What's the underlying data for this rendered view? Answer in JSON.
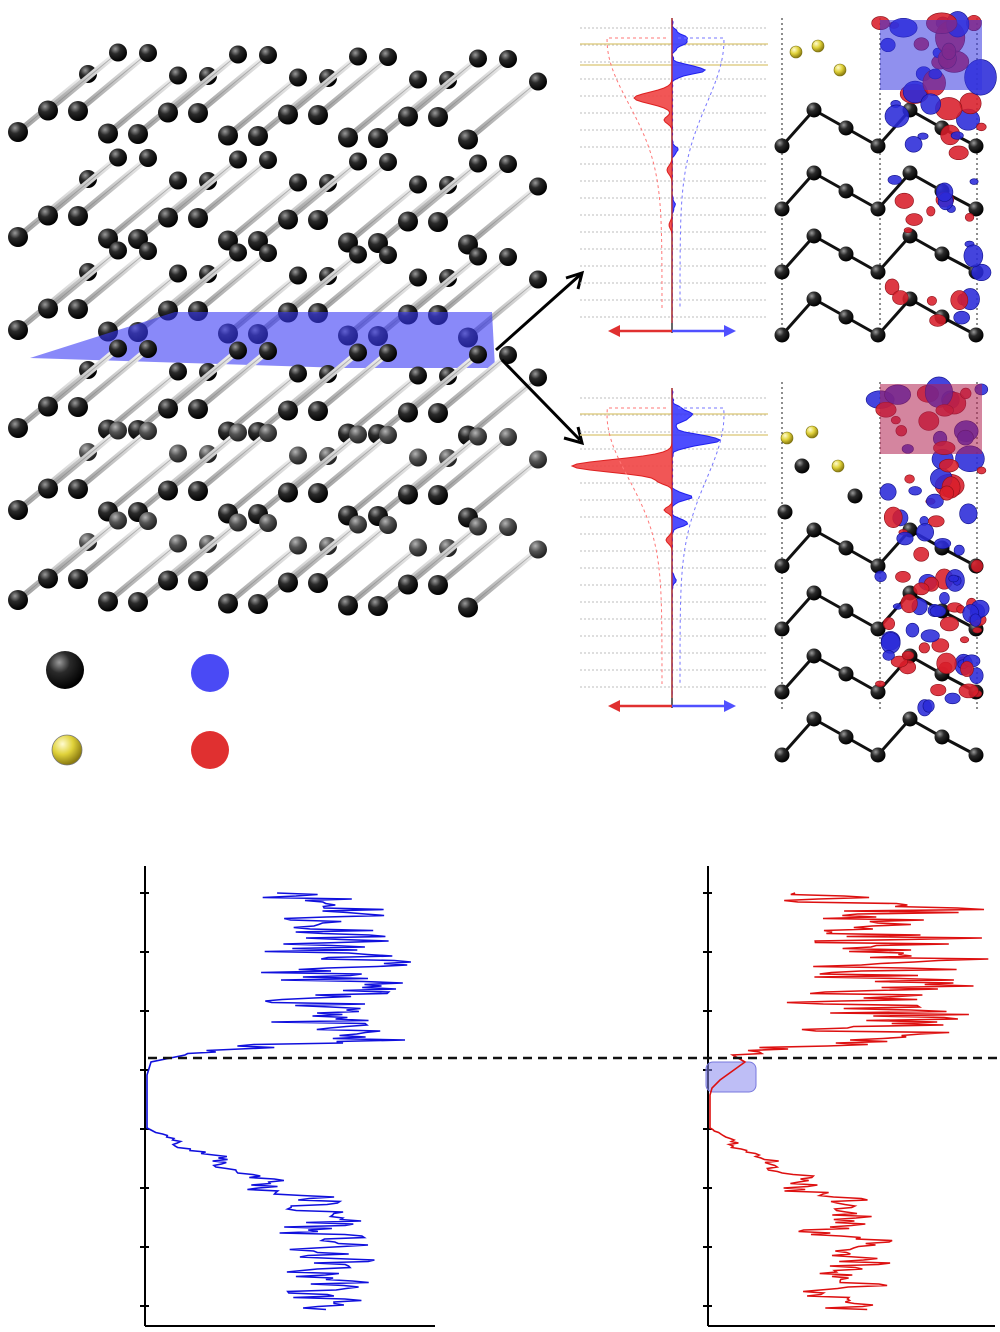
{
  "colors": {
    "atom": "#111111",
    "atom_light": "#555555",
    "adatom": "#e6dc3c",
    "plane": "#3a3af5",
    "spin_up": "#3030ff",
    "spin_down": "#e02020",
    "lattice_line": "#c9c9c9",
    "fermi_line": "#222222"
  },
  "legend": {
    "items": [
      {
        "name": "black-atom",
        "color": "#111111"
      },
      {
        "name": "blue-charge",
        "color": "#4a4af5"
      },
      {
        "name": "yellow-atom",
        "color": "#e6dc3c"
      },
      {
        "name": "red-charge",
        "color": "#e03030"
      }
    ]
  },
  "panels": {
    "structure": {
      "layers": 5,
      "plane": "blue"
    },
    "charge_top": {
      "adatoms": 3
    },
    "charge_bottom": {
      "adatoms": 4
    }
  },
  "chart_data": [
    {
      "type": "line",
      "orientation": "vertical",
      "series": [
        {
          "color": "#1010dd"
        }
      ],
      "fermi_level": true,
      "gap": true
    },
    {
      "type": "line",
      "orientation": "vertical",
      "series": [
        {
          "color": "#dd1010"
        }
      ],
      "fermi_level": true,
      "gap_state_highlight": true
    }
  ]
}
